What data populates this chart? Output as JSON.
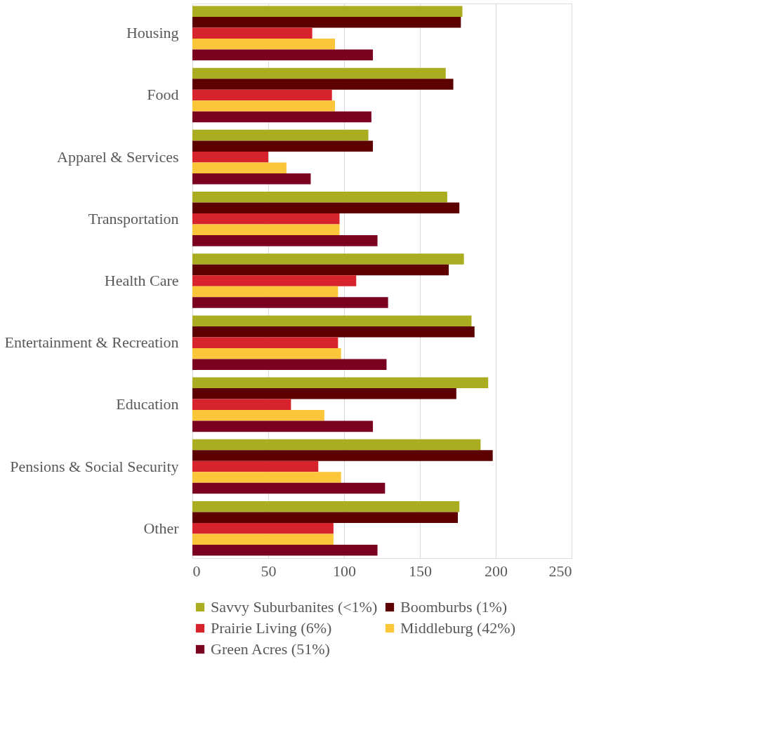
{
  "chart_data": {
    "type": "bar",
    "orientation": "horizontal",
    "categories": [
      "Housing",
      "Food",
      "Apparel & Services",
      "Transportation",
      "Health Care",
      "Entertainment & Recreation",
      "Education",
      "Pensions & Social Security",
      "Other"
    ],
    "series": [
      {
        "name": "Savvy Suburbanites (<1%)",
        "color": "#a9ad1f",
        "values": [
          178,
          167,
          116,
          168,
          179,
          184,
          195,
          190,
          176
        ]
      },
      {
        "name": "Boomburbs (1%)",
        "color": "#5c0000",
        "values": [
          177,
          172,
          119,
          176,
          169,
          186,
          174,
          198,
          175
        ]
      },
      {
        "name": "Prairie Living (6%)",
        "color": "#d7232b",
        "values": [
          79,
          92,
          50,
          97,
          108,
          96,
          65,
          83,
          93
        ]
      },
      {
        "name": "Middleburg (42%)",
        "color": "#fcc63a",
        "values": [
          94,
          94,
          62,
          97,
          96,
          98,
          87,
          98,
          93
        ]
      },
      {
        "name": "Green Acres (51%)",
        "color": "#7b0020",
        "values": [
          119,
          118,
          78,
          122,
          129,
          128,
          119,
          127,
          122
        ]
      }
    ],
    "xlim": [
      0,
      250
    ],
    "xticks": [
      0,
      50,
      100,
      150,
      200,
      250
    ],
    "grid": "x",
    "legend": "bottom"
  }
}
